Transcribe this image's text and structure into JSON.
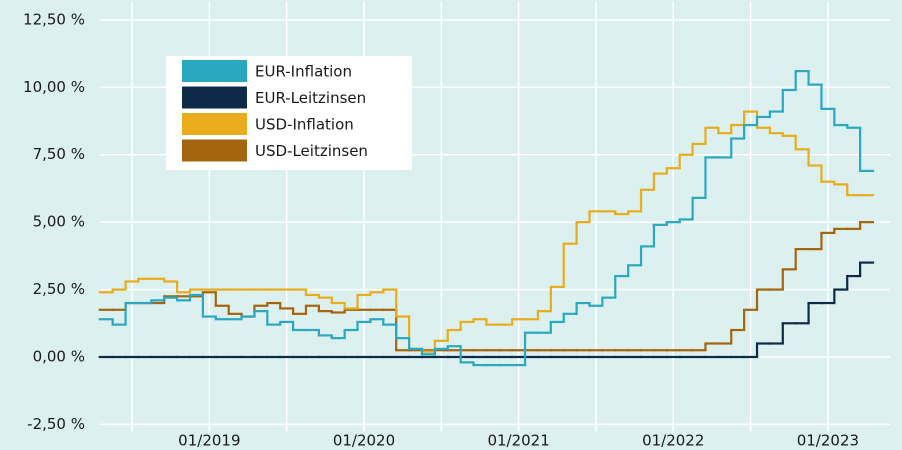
{
  "chart_data": {
    "type": "step-line",
    "categories": [
      null,
      null,
      null,
      null,
      null,
      null,
      null,
      null,
      "01/2019",
      null,
      null,
      null,
      null,
      null,
      null,
      null,
      null,
      null,
      null,
      null,
      "01/2020",
      null,
      null,
      null,
      null,
      null,
      null,
      null,
      null,
      null,
      null,
      null,
      "01/2021",
      null,
      null,
      null,
      null,
      null,
      null,
      null,
      null,
      null,
      null,
      null,
      "01/2022",
      null,
      null,
      null,
      null,
      null,
      null,
      null,
      null,
      null,
      null,
      null,
      "01/2023",
      null,
      null,
      null
    ],
    "series": [
      {
        "name": "EUR-Inflation",
        "color": "#2aa8c0",
        "values": [
          1.4,
          1.2,
          2.0,
          2.0,
          2.1,
          2.2,
          2.1,
          2.3,
          1.5,
          1.4,
          1.4,
          1.5,
          1.7,
          1.2,
          1.3,
          1.0,
          1.0,
          0.8,
          0.7,
          1.0,
          1.3,
          1.4,
          1.2,
          0.7,
          0.3,
          0.1,
          0.3,
          0.4,
          -0.2,
          -0.3,
          -0.3,
          -0.3,
          -0.3,
          0.9,
          0.9,
          1.3,
          1.6,
          2.0,
          1.9,
          2.2,
          3.0,
          3.4,
          4.1,
          4.9,
          5.0,
          5.1,
          5.9,
          7.4,
          7.4,
          8.1,
          8.6,
          8.9,
          9.1,
          9.9,
          10.6,
          10.1,
          9.2,
          8.6,
          8.5,
          6.9
        ]
      },
      {
        "name": "EUR-Leitzinsen",
        "color": "#0d2a47",
        "values": [
          0,
          0,
          0,
          0,
          0,
          0,
          0,
          0,
          0,
          0,
          0,
          0,
          0,
          0,
          0,
          0,
          0,
          0,
          0,
          0,
          0,
          0,
          0,
          0,
          0,
          0,
          0,
          0,
          0,
          0,
          0,
          0,
          0,
          0,
          0,
          0,
          0,
          0,
          0,
          0,
          0,
          0,
          0,
          0,
          0,
          0,
          0,
          0,
          0,
          0,
          0,
          0.5,
          0.5,
          1.25,
          1.25,
          2.0,
          2.0,
          2.5,
          3.0,
          3.5
        ]
      },
      {
        "name": "USD-Inflation",
        "color": "#e8ac1c",
        "values": [
          2.4,
          2.5,
          2.8,
          2.9,
          2.9,
          2.8,
          2.4,
          2.5,
          2.5,
          2.5,
          2.5,
          2.5,
          2.5,
          2.5,
          2.5,
          2.5,
          2.3,
          2.2,
          2.0,
          1.8,
          2.3,
          2.4,
          2.5,
          1.5,
          0.3,
          0.2,
          0.6,
          1.0,
          1.3,
          1.4,
          1.2,
          1.2,
          1.4,
          1.4,
          1.7,
          2.6,
          4.2,
          5.0,
          5.4,
          5.4,
          5.3,
          5.4,
          6.2,
          6.8,
          7.0,
          7.5,
          7.9,
          8.5,
          8.3,
          8.6,
          9.1,
          8.5,
          8.3,
          8.2,
          7.7,
          7.1,
          6.5,
          6.4,
          6.0,
          6.0
        ]
      },
      {
        "name": "USD-Leitzinsen",
        "color": "#a5640f",
        "values": [
          1.75,
          1.75,
          2.0,
          2.0,
          2.0,
          2.25,
          2.25,
          2.25,
          2.4,
          1.9,
          1.6,
          1.5,
          1.9,
          2.0,
          1.8,
          1.6,
          1.9,
          1.7,
          1.65,
          1.75,
          1.75,
          1.75,
          1.75,
          0.25,
          0.25,
          0.25,
          0.25,
          0.25,
          0.25,
          0.25,
          0.25,
          0.25,
          0.25,
          0.25,
          0.25,
          0.25,
          0.25,
          0.25,
          0.25,
          0.25,
          0.25,
          0.25,
          0.25,
          0.25,
          0.25,
          0.25,
          0.25,
          0.5,
          0.5,
          1.0,
          1.75,
          2.5,
          2.5,
          3.25,
          4.0,
          4.0,
          4.6,
          4.75,
          4.75,
          5.0
        ]
      }
    ],
    "ylim": [
      -2.8,
      13.2
    ],
    "yticks": [
      {
        "value": -2.5,
        "label": "-2,50 %"
      },
      {
        "value": 0,
        "label": "0,00 %"
      },
      {
        "value": 2.5,
        "label": "2,50 %"
      },
      {
        "value": 5,
        "label": "5,00 %"
      },
      {
        "value": 7.5,
        "label": "7,50 %"
      },
      {
        "value": 10,
        "label": "10,00 %"
      },
      {
        "value": 12.5,
        "label": "12,50 %"
      }
    ],
    "grid": true,
    "legend": "upper left"
  }
}
